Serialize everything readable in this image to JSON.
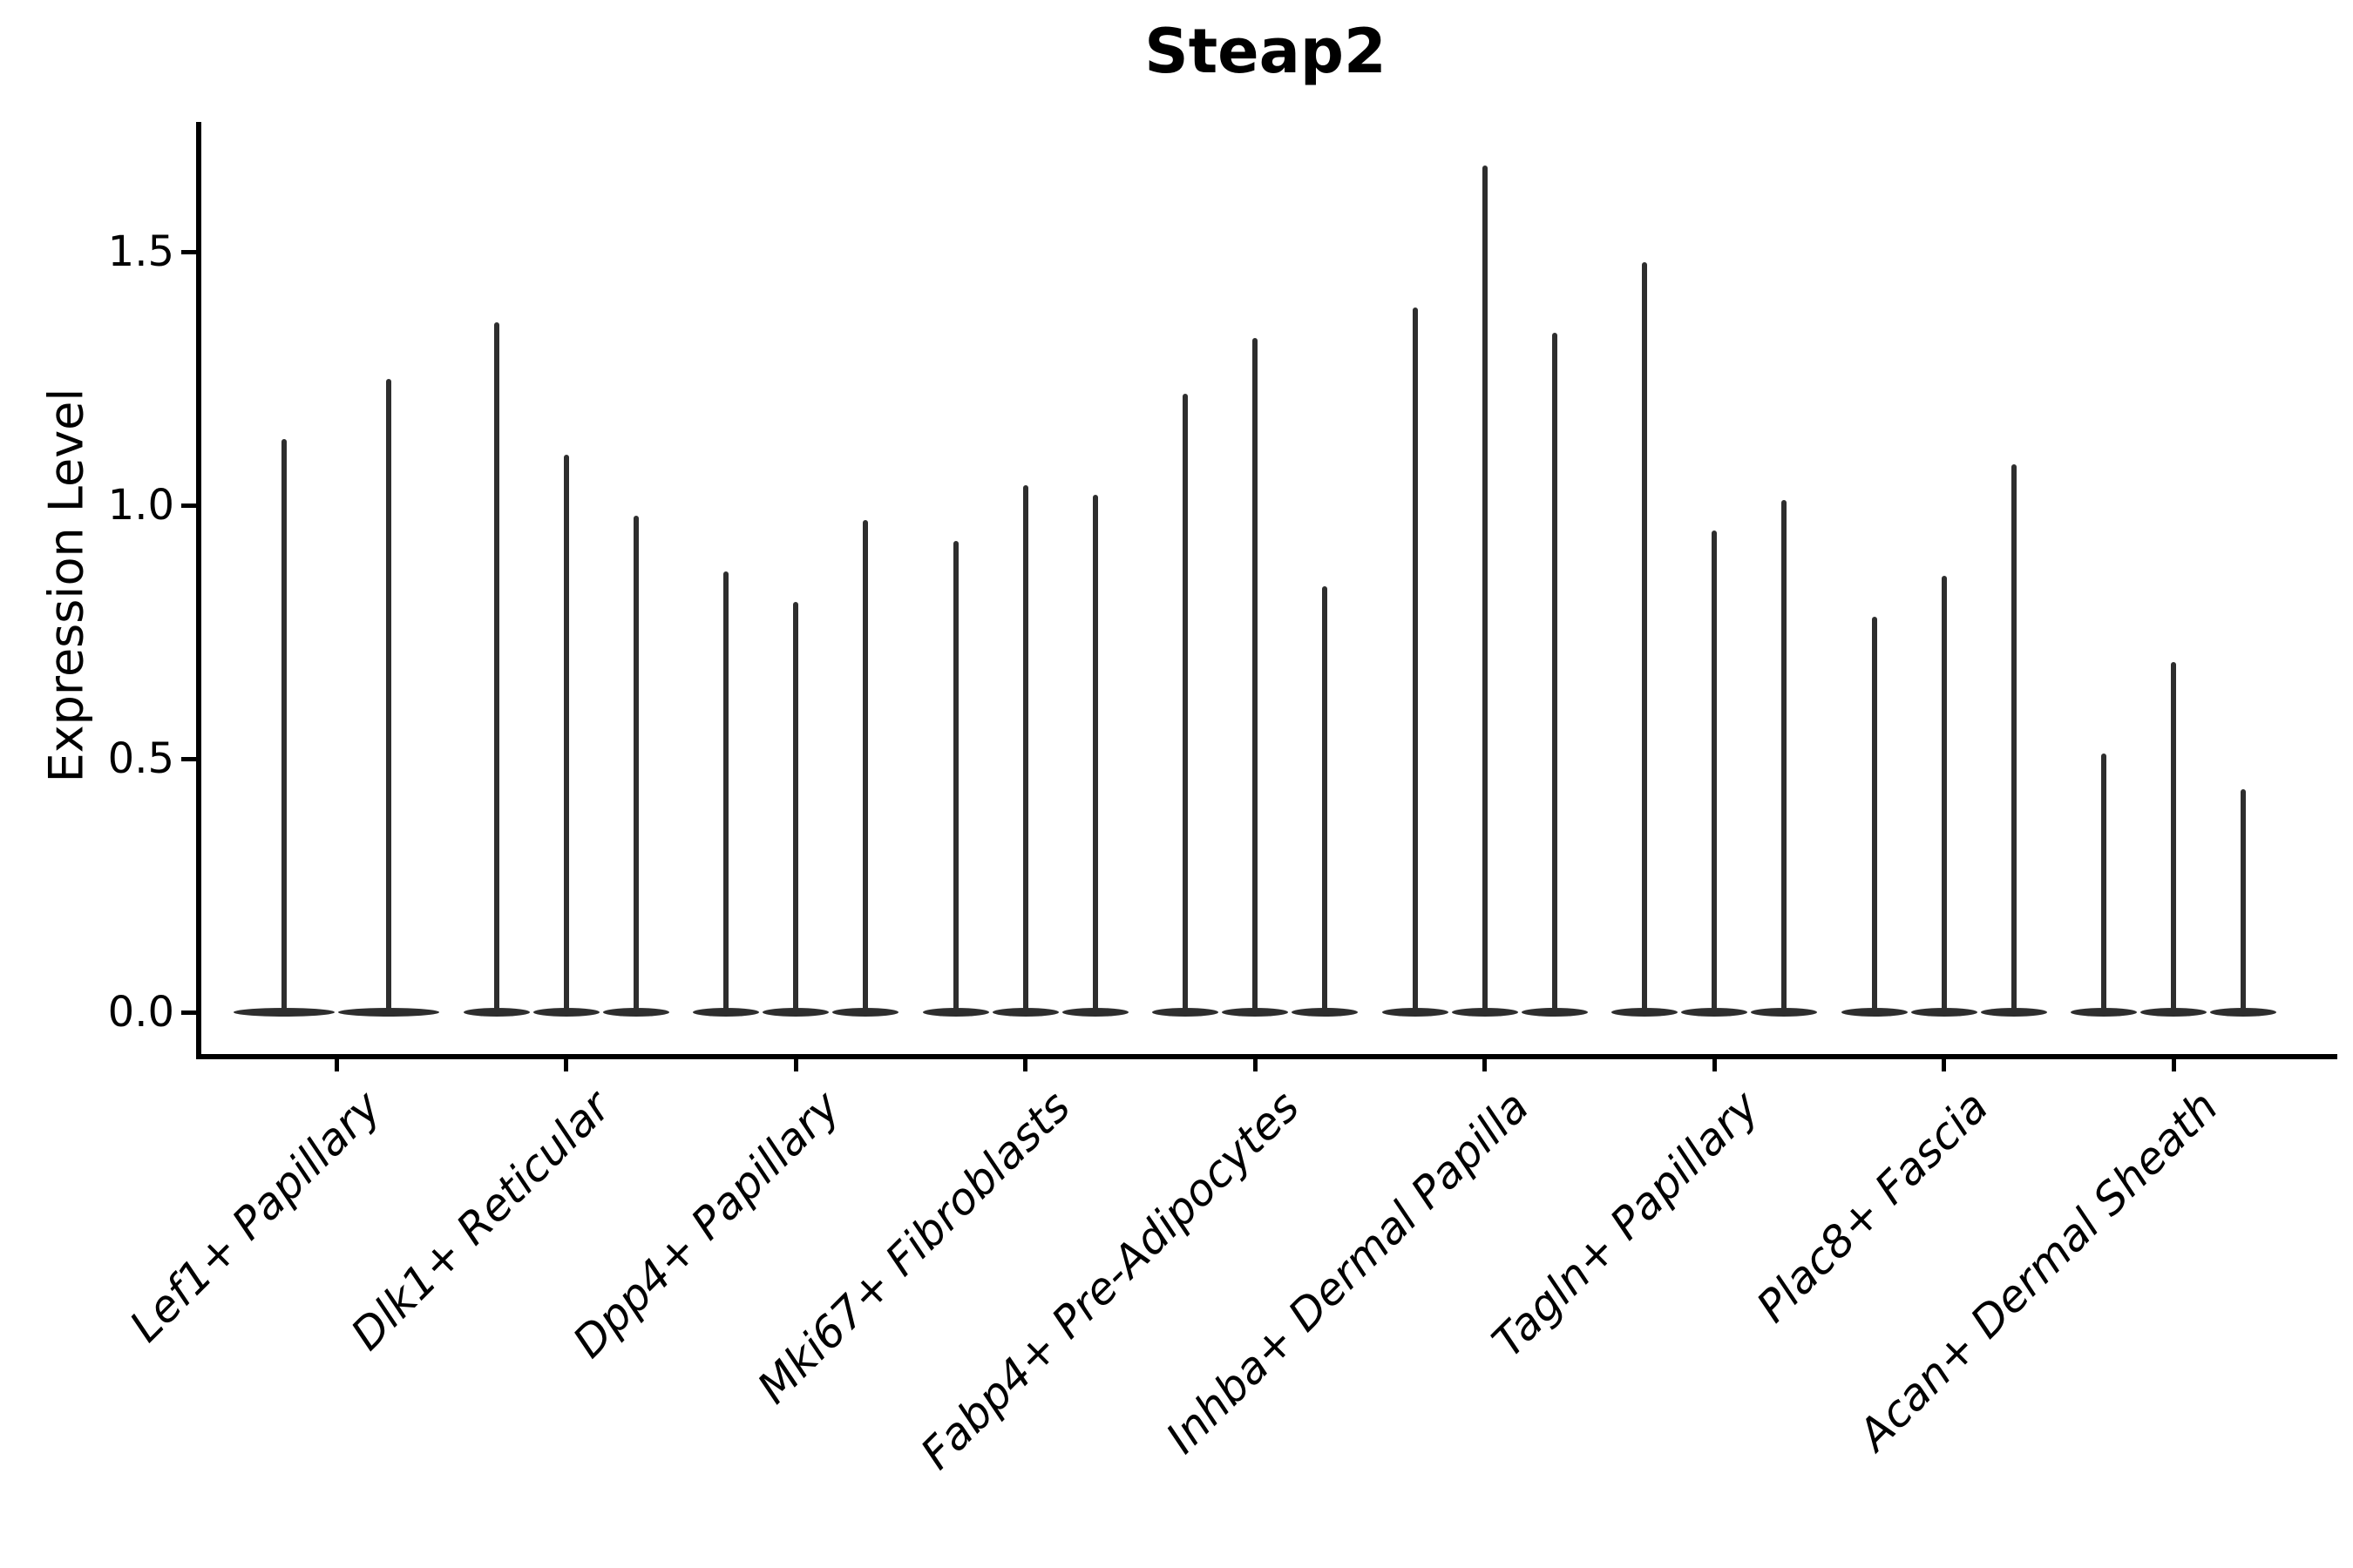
{
  "chart_data": {
    "type": "violin",
    "title": "Steap2",
    "xlabel": "",
    "ylabel": "Expression Level",
    "ylim": [
      -0.11,
      1.76
    ],
    "grid": false,
    "legend": "none",
    "yticks": [
      "0.0",
      "0.5",
      "1.0",
      "1.5"
    ],
    "note": "needle-shaped violins (expression concentrated at 0), up to 3 violins per category",
    "categories": [
      {
        "label": "Lef1+ Papillary",
        "violin_max_values": [
          1.13,
          1.25
        ]
      },
      {
        "label": "Dlk1+ Reticular",
        "violin_max_values": [
          1.36,
          1.1,
          0.98
        ]
      },
      {
        "label": "Dpp4+ Papillary",
        "violin_max_values": [
          0.87,
          0.81,
          0.97
        ]
      },
      {
        "label": "Mki67+ Fibroblasts",
        "violin_max_values": [
          0.93,
          1.04,
          1.02
        ]
      },
      {
        "label": "Fabp4+ Pre-Adipocytes",
        "violin_max_values": [
          1.22,
          1.33,
          0.84
        ]
      },
      {
        "label": "Inhba+ Dermal Papilla",
        "violin_max_values": [
          1.39,
          1.67,
          1.34
        ]
      },
      {
        "label": "Tagln+ Papillary",
        "violin_max_values": [
          1.48,
          0.95,
          1.01
        ]
      },
      {
        "label": "Plac8+ Fascia",
        "violin_max_values": [
          0.78,
          0.86,
          1.08
        ]
      },
      {
        "label": "Acan+ Dermal Sheath",
        "violin_max_values": [
          0.51,
          0.69,
          0.44
        ]
      }
    ],
    "colors": {
      "background": "#ffffff",
      "ink": "#000000",
      "violin": "#2e2e2e"
    }
  }
}
